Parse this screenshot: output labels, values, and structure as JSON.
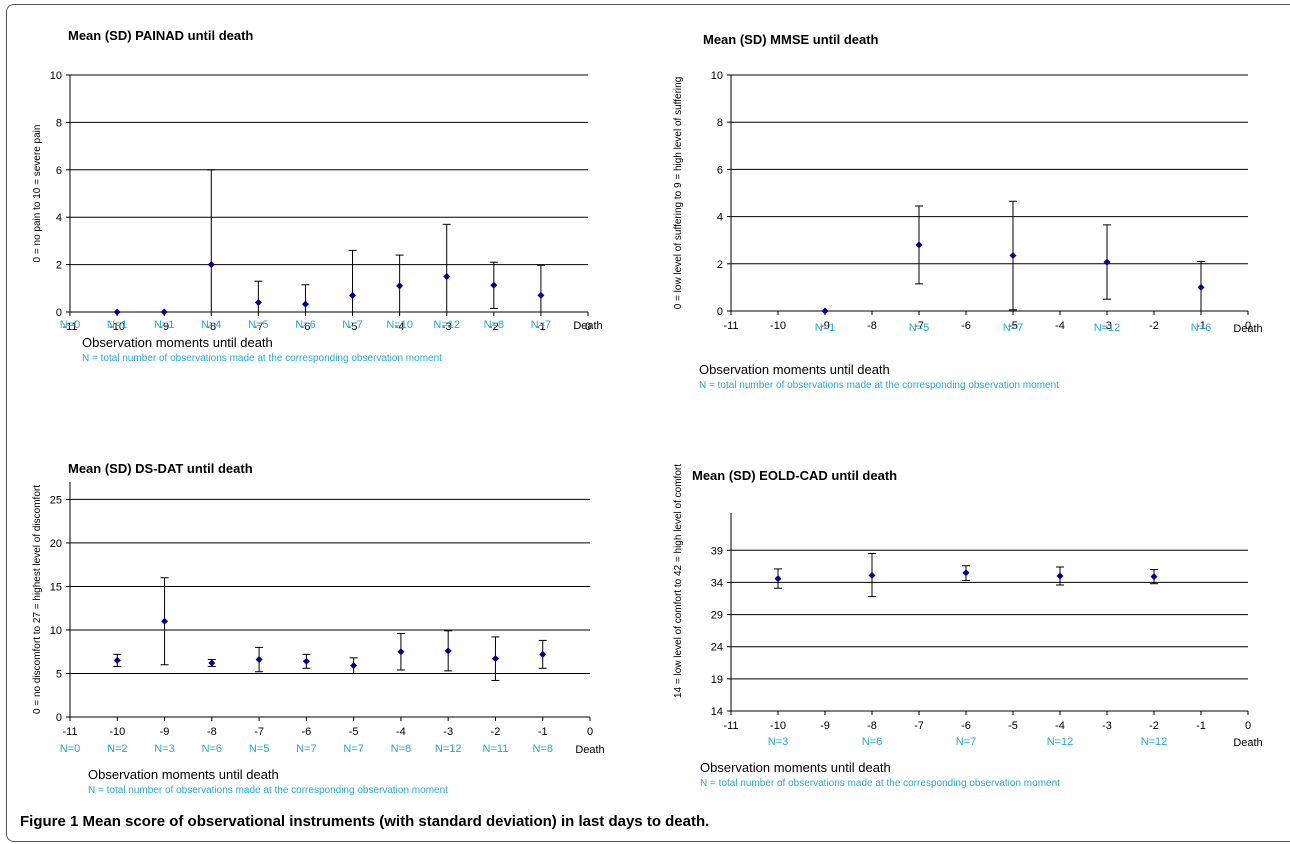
{
  "chart_data": [
    {
      "type": "scatter",
      "title": "Mean (SD) PAINAD until death",
      "ylabel": "0 = no pain to 10 = severe pain",
      "xlabel": "Observation moments until death",
      "note": "N = total number of observations made at the corresponding observation moment",
      "ylim": [
        0,
        10
      ],
      "yticks": [
        "0",
        "2",
        "4",
        "6",
        "8",
        "10"
      ],
      "xlim": [
        -11,
        0
      ],
      "xticks": [
        "-11",
        "-10",
        "-9",
        "-8",
        "-7",
        "-6",
        "-5",
        "-4",
        "-3",
        "-2",
        "-1",
        "0"
      ],
      "grid": true,
      "end_label": "Death",
      "n_labels": [
        {
          "x": -11,
          "label": "N=0"
        },
        {
          "x": -10,
          "label": "N=1"
        },
        {
          "x": -9,
          "label": "N=1"
        },
        {
          "x": -8,
          "label": "N=4"
        },
        {
          "x": -7,
          "label": "N=5"
        },
        {
          "x": -6,
          "label": "N=6"
        },
        {
          "x": -5,
          "label": "N=7"
        },
        {
          "x": -4,
          "label": "N=10"
        },
        {
          "x": -3,
          "label": "N=12"
        },
        {
          "x": -2,
          "label": "N=8"
        },
        {
          "x": -1,
          "label": "N=7"
        }
      ],
      "points": [
        {
          "x": -10,
          "y": 0,
          "lo": 0,
          "hi": 0
        },
        {
          "x": -9,
          "y": 0,
          "lo": 0,
          "hi": 0
        },
        {
          "x": -8,
          "y": 2,
          "lo": 0,
          "hi": 6
        },
        {
          "x": -7,
          "y": 0.4,
          "lo": 0,
          "hi": 1.3
        },
        {
          "x": -6,
          "y": 0.33,
          "lo": 0,
          "hi": 1.15
        },
        {
          "x": -5,
          "y": 0.7,
          "lo": 0,
          "hi": 2.6
        },
        {
          "x": -4,
          "y": 1.1,
          "lo": 0,
          "hi": 2.4
        },
        {
          "x": -3,
          "y": 1.5,
          "lo": 0,
          "hi": 3.7
        },
        {
          "x": -2,
          "y": 1.13,
          "lo": 0.15,
          "hi": 2.1
        },
        {
          "x": -1,
          "y": 0.7,
          "lo": 0,
          "hi": 1.97
        }
      ]
    },
    {
      "type": "scatter",
      "title": "Mean (SD) MMSE until death",
      "ylabel": "0 = low level of suffering to 9 = high level of suffering",
      "xlabel": "Observation moments until death",
      "note": "N = total number of observations made at the corresponding observation moment",
      "ylim": [
        0,
        10
      ],
      "yticks": [
        "0",
        "2",
        "4",
        "6",
        "8",
        "10"
      ],
      "xlim": [
        -11,
        0
      ],
      "xticks": [
        "-11",
        "-10",
        "-9",
        "-8",
        "-7",
        "-6",
        "-5",
        "-4",
        "-3",
        "-2",
        "-1",
        "0"
      ],
      "grid": true,
      "end_label": "Death",
      "n_labels": [
        {
          "x": -9,
          "label": "N=1"
        },
        {
          "x": -7,
          "label": "N=5"
        },
        {
          "x": -5,
          "label": "N=7"
        },
        {
          "x": -3,
          "label": "N=12"
        },
        {
          "x": -1,
          "label": "N=6"
        }
      ],
      "points": [
        {
          "x": -9,
          "y": 0,
          "lo": 0,
          "hi": 0
        },
        {
          "x": -7,
          "y": 2.8,
          "lo": 1.15,
          "hi": 4.45
        },
        {
          "x": -5,
          "y": 2.35,
          "lo": 0.05,
          "hi": 4.65
        },
        {
          "x": -3,
          "y": 2.07,
          "lo": 0.5,
          "hi": 3.65
        },
        {
          "x": -1,
          "y": 1.0,
          "lo": 0,
          "hi": 2.1
        }
      ]
    },
    {
      "type": "scatter",
      "title": "Mean (SD) DS-DAT until death",
      "ylabel": "0 = no discomfort to 27 = highest level of discomfort",
      "xlabel": "Observation moments until death",
      "note": "N = total number of observations made at the corresponding observation moment",
      "ylim": [
        0,
        27
      ],
      "yticks": [
        "0",
        "5",
        "10",
        "15",
        "20",
        "25"
      ],
      "xlim": [
        -11,
        0
      ],
      "xticks": [
        "-11",
        "-10",
        "-9",
        "-8",
        "-7",
        "-6",
        "-5",
        "-4",
        "-3",
        "-2",
        "-1",
        "0"
      ],
      "grid": true,
      "end_label": "Death",
      "n_labels": [
        {
          "x": -11,
          "label": "N=0"
        },
        {
          "x": -10,
          "label": "N=2"
        },
        {
          "x": -9,
          "label": "N=3"
        },
        {
          "x": -8,
          "label": "N=6"
        },
        {
          "x": -7,
          "label": "N=5"
        },
        {
          "x": -6,
          "label": "N=7"
        },
        {
          "x": -5,
          "label": "N=7"
        },
        {
          "x": -4,
          "label": "N=8"
        },
        {
          "x": -3,
          "label": "N=12"
        },
        {
          "x": -2,
          "label": "N=11"
        },
        {
          "x": -1,
          "label": "N=8"
        }
      ],
      "points": [
        {
          "x": -10,
          "y": 6.5,
          "lo": 5.8,
          "hi": 7.2
        },
        {
          "x": -9,
          "y": 11,
          "lo": 6,
          "hi": 16
        },
        {
          "x": -8,
          "y": 6.2,
          "lo": 5.8,
          "hi": 6.6
        },
        {
          "x": -7,
          "y": 6.6,
          "lo": 5.2,
          "hi": 8.0
        },
        {
          "x": -6,
          "y": 6.4,
          "lo": 5.6,
          "hi": 7.2
        },
        {
          "x": -5,
          "y": 5.9,
          "lo": 5.0,
          "hi": 6.8
        },
        {
          "x": -4,
          "y": 7.5,
          "lo": 5.4,
          "hi": 9.6
        },
        {
          "x": -3,
          "y": 7.6,
          "lo": 5.3,
          "hi": 9.9
        },
        {
          "x": -2,
          "y": 6.7,
          "lo": 4.2,
          "hi": 9.2
        },
        {
          "x": -1,
          "y": 7.2,
          "lo": 5.6,
          "hi": 8.8
        }
      ]
    },
    {
      "type": "scatter",
      "title": "Mean (SD) EOLD-CAD until death",
      "ylabel": "14 = low level of comfort to 42 = high level of comfort",
      "xlabel": "Observation moments until death",
      "note": "N = total number of observations made at the corresponding observation moment",
      "ylim": [
        14,
        42
      ],
      "yticks": [
        "14",
        "19",
        "24",
        "29",
        "34",
        "39"
      ],
      "xlim": [
        -11,
        0
      ],
      "xticks": [
        "-11",
        "-10",
        "-9",
        "-8",
        "-7",
        "-6",
        "-5",
        "-4",
        "-3",
        "-2",
        "-1",
        "0"
      ],
      "grid": true,
      "end_label": "Death",
      "n_labels": [
        {
          "x": -10,
          "label": "N=3"
        },
        {
          "x": -8,
          "label": "N=6"
        },
        {
          "x": -6,
          "label": "N=7"
        },
        {
          "x": -4,
          "label": "N=12"
        },
        {
          "x": -2,
          "label": "N=12"
        }
      ],
      "points": [
        {
          "x": -10,
          "y": 34.6,
          "lo": 33.1,
          "hi": 36.1
        },
        {
          "x": -8,
          "y": 35.1,
          "lo": 31.8,
          "hi": 38.5
        },
        {
          "x": -6,
          "y": 35.5,
          "lo": 34.3,
          "hi": 36.6
        },
        {
          "x": -4,
          "y": 35.0,
          "lo": 33.6,
          "hi": 36.4
        },
        {
          "x": -2,
          "y": 34.9,
          "lo": 33.8,
          "hi": 36.0
        }
      ]
    }
  ],
  "caption": {
    "label": "Figure 1",
    "text": "Mean score of observational instruments (with standard deviation) in last days to death."
  }
}
